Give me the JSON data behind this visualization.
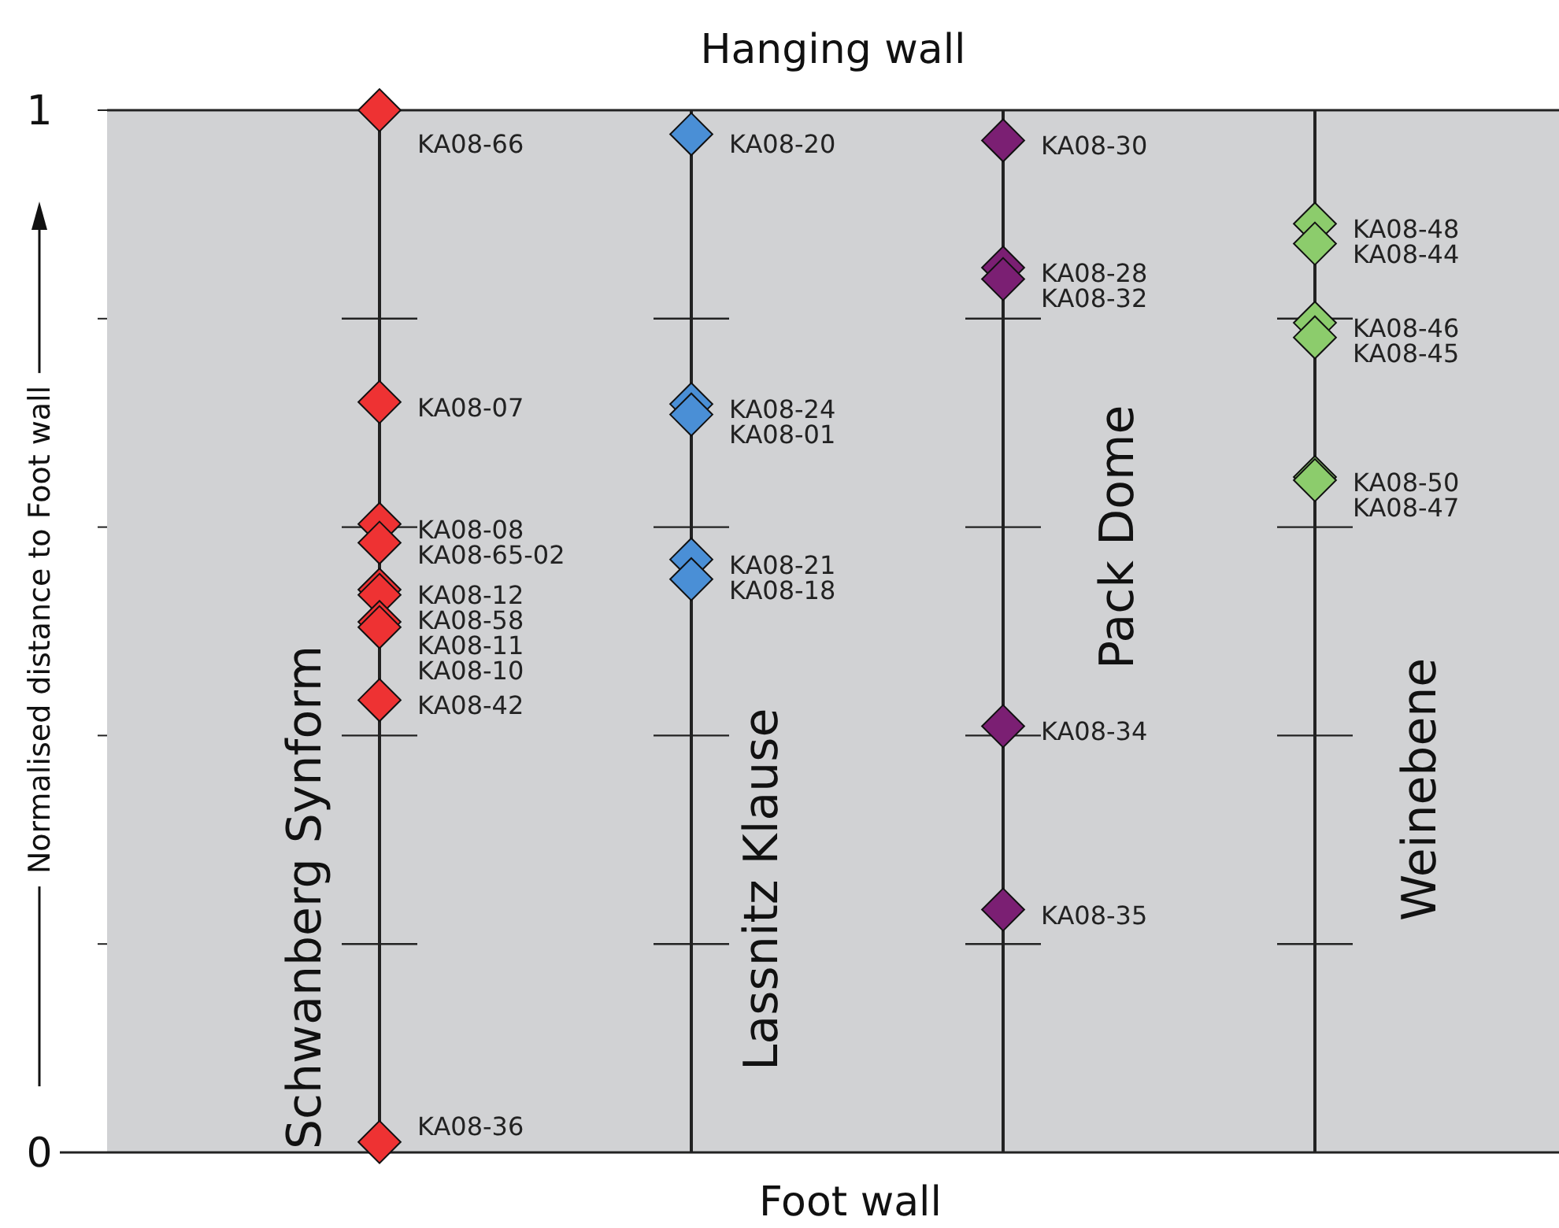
{
  "chart_data": {
    "type": "scatter",
    "title": "Hanging wall",
    "xlabel": "Foot wall",
    "ylabel": "Normalised distance to Foot wall",
    "categories": [
      "Schwanberg Synform",
      "Lassnitz Klause",
      "Pack Dome",
      "Weinebene"
    ],
    "ylim": [
      0,
      1
    ],
    "yticks": [
      0,
      {
        "value": 0.2,
        "label": null
      },
      {
        "value": 0.4,
        "label": null
      },
      {
        "value": 0.6,
        "label": null
      },
      {
        "value": 0.8,
        "label": null
      },
      1
    ],
    "marker": "diamond",
    "grid": "x",
    "series": [
      {
        "color": "#ee3233",
        "x": [
          "Schwanberg Synform",
          "Schwanberg Synform",
          "Schwanberg Synform",
          "Schwanberg Synform",
          "Schwanberg Synform",
          "Schwanberg Synform",
          "Schwanberg Synform",
          "Schwanberg Synform",
          "Schwanberg Synform",
          "Schwanberg Synform"
        ],
        "values": [
          1.0,
          0.72,
          0.603,
          0.585,
          0.54,
          0.535,
          0.509,
          0.504,
          0.434,
          0.01
        ],
        "value_labels": [
          "KA08-66",
          "KA08-07",
          "KA08-08",
          "KA08-65-02",
          "KA08-12",
          "KA08-58",
          "KA08-11",
          "KA08-10",
          "KA08-42",
          "KA08-36"
        ]
      },
      {
        "color": "#4a8fd6",
        "x": [
          "Lassnitz Klause",
          "Lassnitz Klause",
          "Lassnitz Klause",
          "Lassnitz Klause",
          "Lassnitz Klause"
        ],
        "values": [
          0.977,
          0.718,
          0.708,
          0.569,
          0.55
        ],
        "value_labels": [
          "KA08-20",
          "KA08-24",
          "KA08-01",
          "KA08-21",
          "KA08-18"
        ]
      },
      {
        "color": "#7b1f73",
        "x": [
          "Pack Dome",
          "Pack Dome",
          "Pack Dome",
          "Pack Dome",
          "Pack Dome"
        ],
        "values": [
          0.971,
          0.849,
          0.838,
          0.409,
          0.233
        ],
        "value_labels": [
          "KA08-30",
          "KA08-28",
          "KA08-32",
          "KA08-34",
          "KA08-35"
        ]
      },
      {
        "color": "#8ccc6c",
        "x": [
          "Weinebene",
          "Weinebene",
          "Weinebene",
          "Weinebene",
          "Weinebene",
          "Weinebene"
        ],
        "values": [
          0.891,
          0.872,
          0.796,
          0.782,
          0.648,
          0.645
        ],
        "value_labels": [
          "KA08-48",
          "KA08-44",
          "KA08-46",
          "KA08-45",
          "KA08-50",
          "KA08-47"
        ]
      }
    ]
  }
}
